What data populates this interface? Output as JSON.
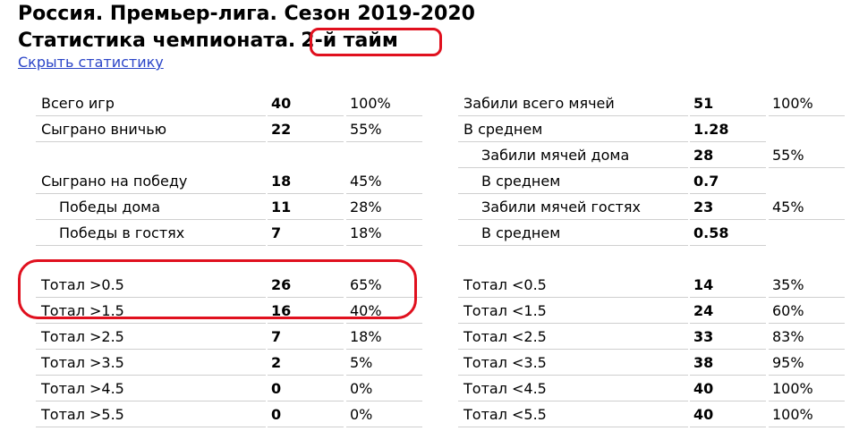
{
  "header": {
    "title": "Россия. Премьер-лига. Сезон 2019-2020",
    "subtitle_prefix": "Статистика чемпионата.",
    "subtitle_half": "2-й тайм",
    "hide_link": "Скрыть статистику"
  },
  "left_table": [
    {
      "label": "Всего игр",
      "value": "40",
      "pct": "100%",
      "type": "row"
    },
    {
      "label": "Сыграно вничью",
      "value": "22",
      "pct": "55%",
      "type": "row"
    },
    {
      "label": "",
      "value": "",
      "pct": "",
      "type": "empty"
    },
    {
      "label": "Сыграно на победу",
      "value": "18",
      "pct": "45%",
      "type": "row"
    },
    {
      "label": "Победы дома",
      "value": "11",
      "pct": "28%",
      "type": "sub"
    },
    {
      "label": "Победы в гостях",
      "value": "7",
      "pct": "18%",
      "type": "sub"
    },
    {
      "label": "",
      "value": "",
      "pct": "",
      "type": "empty"
    },
    {
      "label": "Тотал >0.5",
      "value": "26",
      "pct": "65%",
      "type": "row"
    },
    {
      "label": "Тотал >1.5",
      "value": "16",
      "pct": "40%",
      "type": "row"
    },
    {
      "label": "Тотал >2.5",
      "value": "7",
      "pct": "18%",
      "type": "row"
    },
    {
      "label": "Тотал >3.5",
      "value": "2",
      "pct": "5%",
      "type": "row"
    },
    {
      "label": "Тотал >4.5",
      "value": "0",
      "pct": "0%",
      "type": "row"
    },
    {
      "label": "Тотал >5.5",
      "value": "0",
      "pct": "0%",
      "type": "row"
    }
  ],
  "right_table": [
    {
      "label": "Забили всего мячей",
      "value": "51",
      "pct": "100%",
      "type": "row"
    },
    {
      "label": "В среднем",
      "value": "1.28",
      "pct": "",
      "type": "row"
    },
    {
      "label": "Забили мячей дома",
      "value": "28",
      "pct": "55%",
      "type": "sub"
    },
    {
      "label": "В среднем",
      "value": "0.7",
      "pct": "",
      "type": "sub"
    },
    {
      "label": "Забили мячей гостях",
      "value": "23",
      "pct": "45%",
      "type": "sub"
    },
    {
      "label": "В среднем",
      "value": "0.58",
      "pct": "",
      "type": "sub"
    },
    {
      "label": "",
      "value": "",
      "pct": "",
      "type": "empty"
    },
    {
      "label": "Тотал <0.5",
      "value": "14",
      "pct": "35%",
      "type": "row"
    },
    {
      "label": "Тотал <1.5",
      "value": "24",
      "pct": "60%",
      "type": "row"
    },
    {
      "label": "Тотал <2.5",
      "value": "33",
      "pct": "83%",
      "type": "row"
    },
    {
      "label": "Тотал <3.5",
      "value": "38",
      "pct": "95%",
      "type": "row"
    },
    {
      "label": "Тотал <4.5",
      "value": "40",
      "pct": "100%",
      "type": "row"
    },
    {
      "label": "Тотал <5.5",
      "value": "40",
      "pct": "100%",
      "type": "row"
    }
  ],
  "colors": {
    "highlight": "#e0101e",
    "link": "#2b45c8"
  }
}
